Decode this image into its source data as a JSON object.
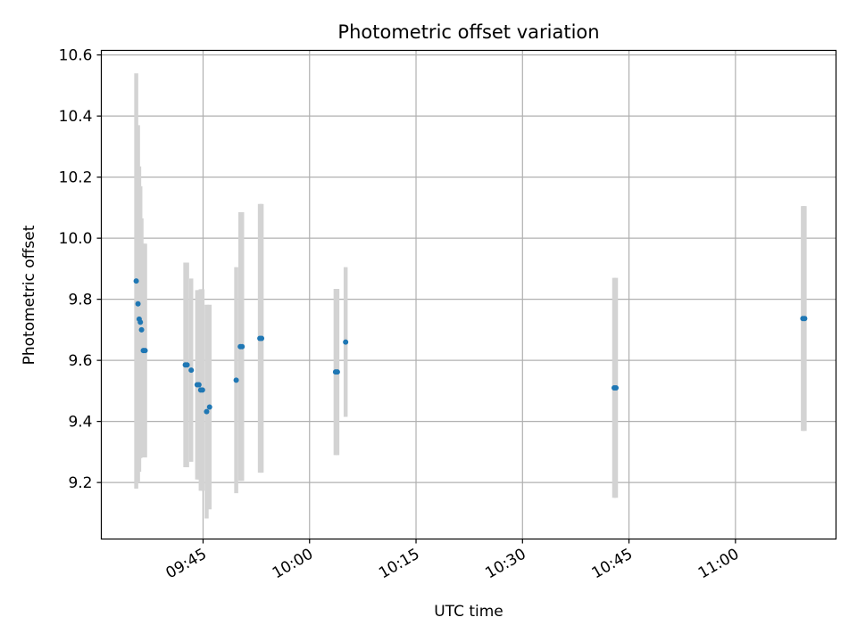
{
  "chart_data": {
    "type": "scatter",
    "title": "Photometric offset variation",
    "xlabel": "UTC time",
    "ylabel": "Photometric offset",
    "x_range": [
      "09:30:40",
      "11:14:10"
    ],
    "ylim": [
      9.015,
      10.615
    ],
    "y_ticks": [
      "9.2",
      "9.4",
      "9.6",
      "9.8",
      "10.0",
      "10.2",
      "10.4",
      "10.6"
    ],
    "x_ticks": [
      "09:45",
      "10:00",
      "10:15",
      "10:30",
      "10:45",
      "11:00"
    ],
    "grid": true,
    "colors": {
      "point": "#1f77b4",
      "errorbar": "#d3d3d3",
      "grid": "#b0b0b0"
    },
    "points": [
      {
        "x": "09:35:35",
        "y": 9.86,
        "yerr": 0.68
      },
      {
        "x": "09:35:50",
        "y": 9.785,
        "yerr": 0.585
      },
      {
        "x": "09:36:00",
        "y": 9.735,
        "yerr": 0.5
      },
      {
        "x": "09:36:10",
        "y": 9.725,
        "yerr": 0.445
      },
      {
        "x": "09:36:20",
        "y": 9.7,
        "yerr": 0.365
      },
      {
        "x": "09:36:35",
        "y": 9.632,
        "yerr": 0.35
      },
      {
        "x": "09:36:50",
        "y": 9.632,
        "yerr": 0.35
      },
      {
        "x": "09:42:30",
        "y": 9.585,
        "yerr": 0.335
      },
      {
        "x": "09:42:45",
        "y": 9.585,
        "yerr": 0.335
      },
      {
        "x": "09:43:20",
        "y": 9.568,
        "yerr": 0.3
      },
      {
        "x": "09:44:10",
        "y": 9.52,
        "yerr": 0.31
      },
      {
        "x": "09:44:25",
        "y": 9.52,
        "yerr": 0.31
      },
      {
        "x": "09:44:40",
        "y": 9.503,
        "yerr": 0.33
      },
      {
        "x": "09:44:55",
        "y": 9.503,
        "yerr": 0.33
      },
      {
        "x": "09:45:30",
        "y": 9.432,
        "yerr": 0.35
      },
      {
        "x": "09:45:55",
        "y": 9.447,
        "yerr": 0.335
      },
      {
        "x": "09:49:40",
        "y": 9.535,
        "yerr": 0.37
      },
      {
        "x": "09:50:15",
        "y": 9.645,
        "yerr": 0.44
      },
      {
        "x": "09:50:30",
        "y": 9.645,
        "yerr": 0.44
      },
      {
        "x": "09:53:00",
        "y": 9.672,
        "yerr": 0.44
      },
      {
        "x": "09:53:15",
        "y": 9.672,
        "yerr": 0.44
      },
      {
        "x": "10:03:40",
        "y": 9.562,
        "yerr": 0.272
      },
      {
        "x": "10:03:55",
        "y": 9.562,
        "yerr": 0.272
      },
      {
        "x": "10:05:05",
        "y": 9.66,
        "yerr": 0.245
      },
      {
        "x": "10:42:55",
        "y": 9.51,
        "yerr": 0.36
      },
      {
        "x": "10:43:10",
        "y": 9.51,
        "yerr": 0.36
      },
      {
        "x": "11:09:30",
        "y": 9.737,
        "yerr": 0.368
      },
      {
        "x": "11:09:45",
        "y": 9.737,
        "yerr": 0.368
      }
    ]
  }
}
